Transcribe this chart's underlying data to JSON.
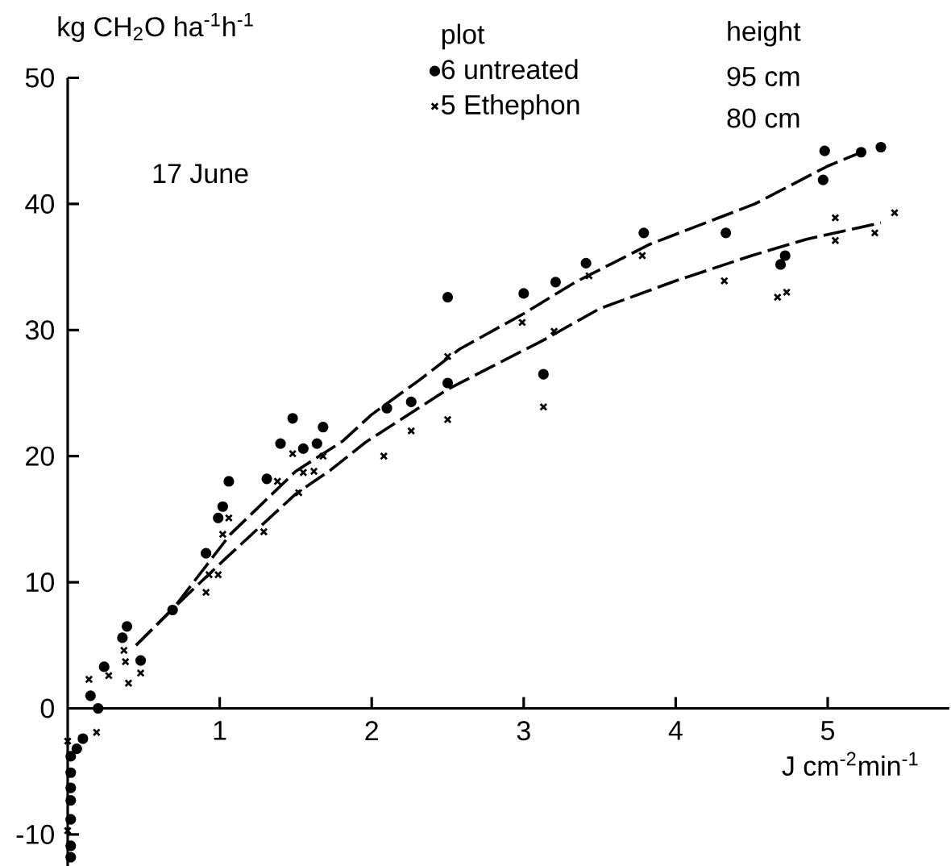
{
  "chart_data": {
    "type": "scatter",
    "xlabel": "J cm$^{-2}$min$^{-1}$",
    "ylabel": "kg CH$_{2}$O ha$^{-1}$h$^{-1}$",
    "legend_title": "plot",
    "annotations": [
      "17 June",
      "height",
      "95 cm",
      "80 cm"
    ],
    "xlim": [
      0,
      5.8
    ],
    "ylim": [
      -12.5,
      50
    ],
    "xticks": [
      1,
      2,
      3,
      4,
      5
    ],
    "yticks": [
      -10,
      0,
      10,
      20,
      30,
      40,
      50
    ],
    "legend": "top",
    "grid": false,
    "series": [
      {
        "name": "6 untreated",
        "type": "scatter",
        "marker": "circle",
        "color": "#000000",
        "x": [
          0.02,
          0.02,
          0.02,
          0.02,
          0.02,
          0.02,
          0.02,
          0.06,
          0.1,
          0.15,
          0.2,
          0.24,
          0.36,
          0.39,
          0.48,
          0.69,
          0.91,
          0.99,
          1.02,
          1.06,
          1.31,
          1.4,
          1.48,
          1.55,
          1.64,
          1.68,
          2.1,
          2.26,
          2.5,
          2.5,
          3.0,
          3.13,
          3.21,
          3.41,
          3.79,
          4.33,
          4.69,
          4.72,
          4.97,
          4.98,
          5.22,
          5.35
        ],
        "values": [
          -3.8,
          -5.1,
          -6.3,
          -7.3,
          -8.8,
          -10.9,
          -11.8,
          -3.2,
          -2.4,
          1.0,
          0,
          3.3,
          5.6,
          6.5,
          3.8,
          7.8,
          12.3,
          15.1,
          16.0,
          18.0,
          18.2,
          21.0,
          23.0,
          20.6,
          21.0,
          22.3,
          23.8,
          24.3,
          32.6,
          25.8,
          32.9,
          26.5,
          33.8,
          35.3,
          37.7,
          37.7,
          35.2,
          35.9,
          41.9,
          44.2,
          44.1,
          44.5
        ]
      },
      {
        "name": "5 Ethephon",
        "type": "scatter",
        "marker": "cross",
        "color": "#000000",
        "x": [
          0,
          0,
          0.14,
          0.19,
          0.27,
          0.37,
          0.38,
          0.4,
          0.48,
          0.91,
          0.93,
          0.99,
          1.02,
          1.06,
          1.29,
          1.38,
          1.48,
          1.52,
          1.55,
          1.62,
          1.68,
          2.08,
          2.26,
          2.5,
          2.5,
          2.99,
          3.13,
          3.2,
          3.43,
          3.78,
          4.32,
          4.67,
          4.73,
          5.05,
          5.05,
          5.31,
          5.44
        ],
        "values": [
          -2.6,
          -9.7,
          2.3,
          -1.9,
          2.6,
          4.6,
          3.7,
          2.0,
          2.8,
          9.2,
          10.6,
          10.6,
          13.8,
          15.1,
          14.0,
          18.0,
          20.2,
          17.1,
          18.7,
          18.8,
          20.0,
          20.0,
          22.0,
          27.9,
          22.9,
          30.6,
          23.9,
          29.9,
          34.3,
          35.9,
          33.9,
          32.6,
          33.0,
          37.1,
          38.9,
          37.7,
          39.3
        ]
      },
      {
        "type": "line",
        "marker": "none",
        "line_style": "dashed",
        "color": "#000000",
        "x": [
          0.45,
          0.7,
          1.07,
          1.5,
          1.81,
          2.0,
          2.31,
          2.58,
          3.0,
          3.34,
          3.83,
          4.52,
          5.0,
          5.2
        ],
        "values": [
          5,
          8,
          13.8,
          18.8,
          21.2,
          23.3,
          26,
          28.5,
          31.3,
          33.8,
          36.8,
          40,
          43,
          44
        ]
      },
      {
        "type": "line",
        "marker": "none",
        "line_style": "dashed",
        "color": "#000000",
        "x": [
          0.45,
          0.7,
          1.04,
          1.5,
          1.73,
          1.96,
          2.5,
          3.13,
          3.5,
          4.0,
          4.5,
          4.86,
          5.35
        ],
        "values": [
          5,
          8,
          11.9,
          17,
          18.9,
          21.1,
          25.3,
          29.2,
          31.7,
          33.9,
          35.9,
          37.2,
          38.5
        ]
      }
    ]
  }
}
